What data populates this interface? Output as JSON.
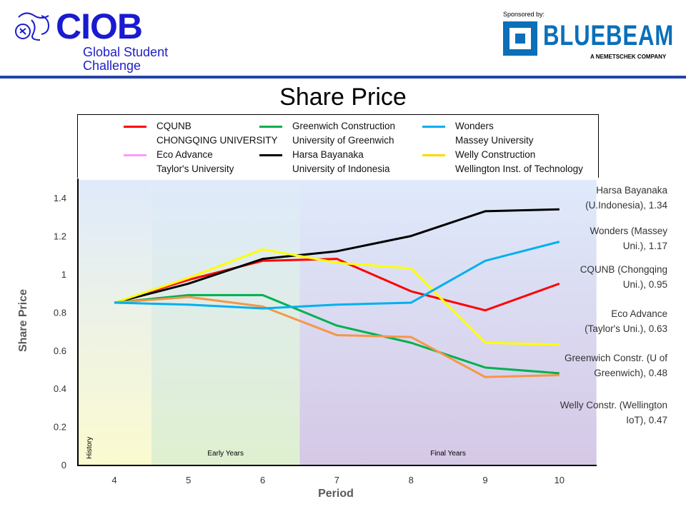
{
  "header": {
    "logo_text": "CIOB",
    "logo_subtitle_line1": "Global Student",
    "logo_subtitle_line2": "Challenge",
    "sponsor_label": "Sponsored by:",
    "sponsor_name": "BLUEBEAM",
    "sponsor_tagline": "A NEMETSCHEK COMPANY",
    "rule_color": "#2643a8"
  },
  "chart_data": {
    "type": "line",
    "title": "Share Price",
    "xlabel": "Period",
    "ylabel": "Share Price",
    "x": [
      4,
      5,
      6,
      7,
      8,
      9,
      10
    ],
    "xticks": [
      "4",
      "5",
      "6",
      "7",
      "8",
      "9",
      "10"
    ],
    "yticks": [
      "0",
      "0.2",
      "0.4",
      "0.6",
      "0.8",
      "1",
      "1.2",
      "1.4"
    ],
    "ylim": [
      0,
      1.5
    ],
    "grid": false,
    "legend_placement": "top",
    "legend": [
      {
        "line1": "CQUNB",
        "line2": "CHONGQING UNIVERSITY",
        "color": "#ff0000"
      },
      {
        "line1": "Greenwich Construction",
        "line2": "University of Greenwich",
        "color": "#00b050"
      },
      {
        "line1": "Wonders",
        "line2": "Massey University",
        "color": "#00b0f0"
      },
      {
        "line1": "Eco Advance",
        "line2": "Taylor's University",
        "color": "#ff99ff"
      },
      {
        "line1": "Harsa Bayanaka",
        "line2": "University of Indonesia",
        "color": "#000000"
      },
      {
        "line1": "Welly Construction",
        "line2": "Wellington Inst. of Technology",
        "color": "#ffd700"
      }
    ],
    "series": [
      {
        "color": "#ff0000",
        "values": [
          0.85,
          0.97,
          1.07,
          1.08,
          0.91,
          0.81,
          0.95
        ]
      },
      {
        "color": "#000000",
        "values": [
          0.85,
          0.95,
          1.08,
          1.12,
          1.2,
          1.33,
          1.34
        ]
      },
      {
        "color": "#ffff00",
        "values": [
          0.85,
          0.98,
          1.13,
          1.06,
          1.03,
          0.64,
          0.63
        ]
      },
      {
        "color": "#00b050",
        "values": [
          0.85,
          0.89,
          0.89,
          0.73,
          0.64,
          0.51,
          0.48
        ]
      },
      {
        "color": "#f79646",
        "values": [
          0.85,
          0.88,
          0.83,
          0.68,
          0.67,
          0.46,
          0.47
        ]
      },
      {
        "color": "#00b0f0",
        "values": [
          0.85,
          0.84,
          0.82,
          0.84,
          0.85,
          1.07,
          1.17
        ]
      }
    ],
    "end_labels": [
      {
        "line1": "Harsa Bayanaka",
        "line2": "(U.Indonesia), 1.34"
      },
      {
        "line1": "Wonders (Massey",
        "line2": "Uni.), 1.17"
      },
      {
        "line1": "CQUNB (Chongqing",
        "line2": "Uni.), 0.95"
      },
      {
        "line1": "Eco Advance",
        "line2": "(Taylor's Uni.), 0.63"
      },
      {
        "line1": "Greenwich Constr. (U of",
        "line2": "Greenwich), 0.48"
      },
      {
        "line1": "Welly Constr. (Wellington",
        "line2": "IoT), 0.47"
      }
    ],
    "regions": [
      {
        "label": "History",
        "from": 3.5,
        "to": 4.5
      },
      {
        "label": "Early Years",
        "from": 4.5,
        "to": 6.5
      },
      {
        "label": "Final Years",
        "from": 6.5,
        "to": 10.5
      }
    ]
  }
}
